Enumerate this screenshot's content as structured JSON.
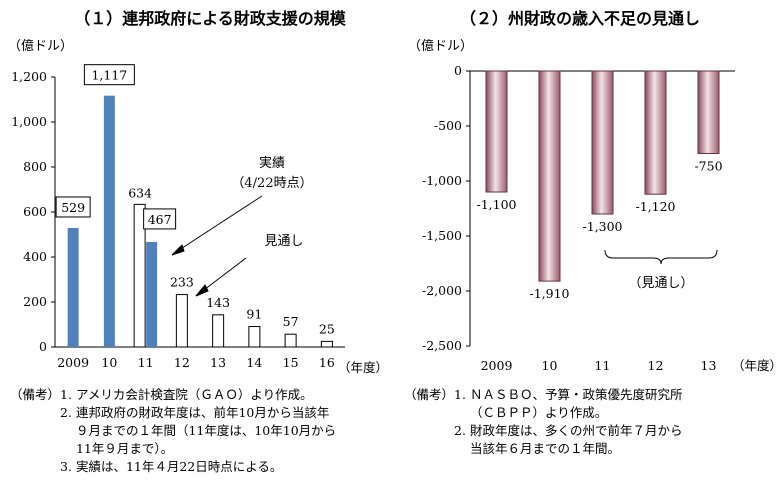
{
  "chart_data": [
    {
      "type": "bar",
      "title": "（１）連邦政府による財政支援の規模",
      "unit_label": "（億ドル）",
      "xlabel": "（年度）",
      "ylim": [
        0,
        1200
      ],
      "yticks": [
        "0",
        "200",
        "400",
        "600",
        "800",
        "1,000",
        "1,200"
      ],
      "categories": [
        "2009",
        "10",
        "11",
        "12",
        "13",
        "14",
        "15",
        "16"
      ],
      "series": [
        {
          "name": "実績（4/22時点）",
          "values": [
            529,
            1117,
            467,
            null,
            null,
            null,
            null,
            null
          ],
          "color": "#4f81bd",
          "labels": [
            "529",
            "1,117",
            "467",
            "",
            "",
            "",
            "",
            ""
          ]
        },
        {
          "name": "見通し",
          "values": [
            null,
            null,
            634,
            233,
            143,
            91,
            57,
            25
          ],
          "color": "#ffffff",
          "labels": [
            "",
            "",
            "634",
            "233",
            "143",
            "91",
            "57",
            "25"
          ]
        }
      ],
      "annotations": {
        "actual_line1": "実績",
        "actual_line2": "（4/22時点）",
        "forecast": "見通し"
      }
    },
    {
      "type": "bar",
      "title": "（２）州財政の歳入不足の見通し",
      "unit_label": "（億ドル）",
      "xlabel": "（年度）",
      "ylim": [
        -2500,
        0
      ],
      "yticks": [
        "0",
        "-500",
        "-1,000",
        "-1,500",
        "-2,000",
        "-2,500"
      ],
      "categories": [
        "2009",
        "10",
        "11",
        "12",
        "13"
      ],
      "values": [
        -1100,
        -1910,
        -1300,
        -1120,
        -750
      ],
      "labels": [
        "-1,100",
        "-1,910",
        "-1,300",
        "-1,120",
        "-750"
      ],
      "color": "#b07a8a",
      "annotations": {
        "forecast": "（見通し）"
      }
    }
  ],
  "notes_left": {
    "head": "（備考）",
    "items": [
      {
        "num": "1.",
        "text": "アメリカ会計検査院（ＧＡＯ）より作成。"
      },
      {
        "num": "2.",
        "text": "連邦政府の財政年度は、前年10月から当該年\n９月までの１年間（11年度は、10年10月から\n11年９月まで）。"
      },
      {
        "num": "3.",
        "text": "実績は、11年４月22日時点による。"
      }
    ]
  },
  "notes_right": {
    "head": "（備考）",
    "items": [
      {
        "num": "1.",
        "text": "ＮＡＳＢＯ、予算・政策優先度研究所\n（ＣＢＰＰ）より作成。"
      },
      {
        "num": "2.",
        "text": "財政年度は、多くの州で前年７月から\n当該年６月までの１年間。"
      }
    ]
  }
}
